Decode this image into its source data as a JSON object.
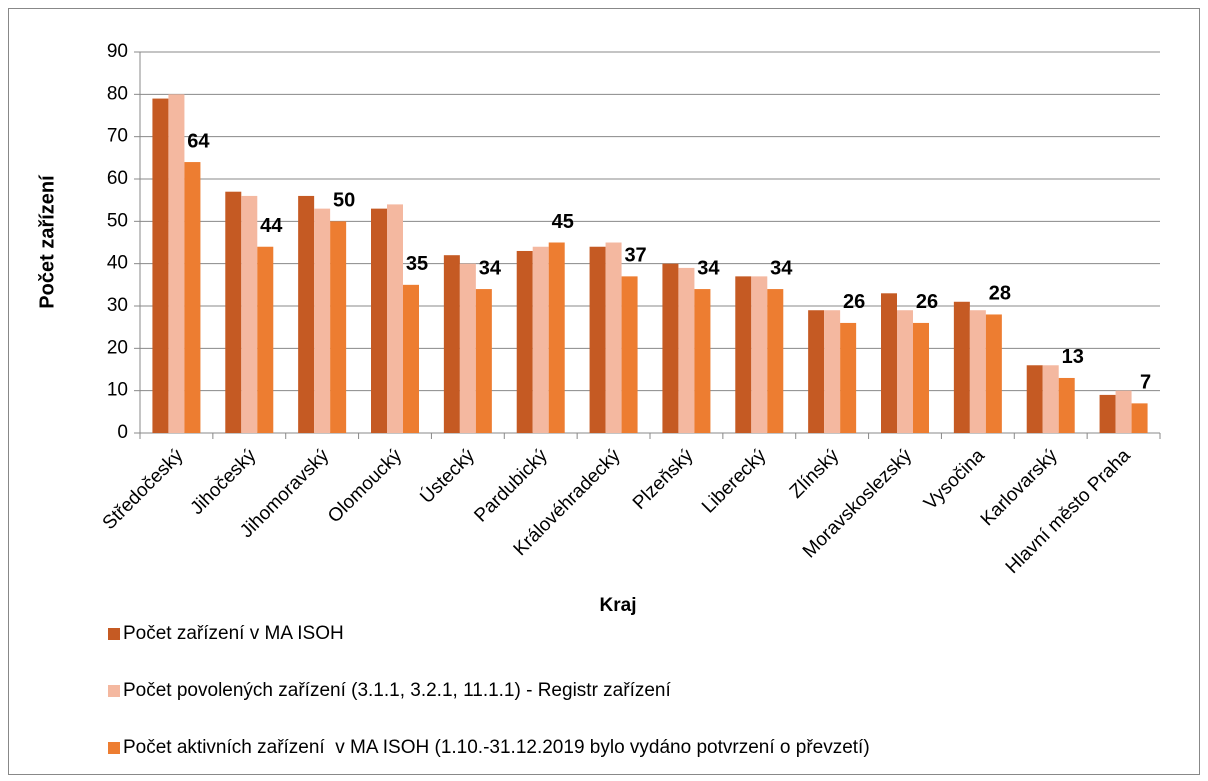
{
  "chart_data": {
    "type": "bar",
    "y_label": "Počet zařízení",
    "x_label": "Kraj",
    "categories": [
      "Středočeský",
      "Jihočeský",
      "Jihomoravský",
      "Olomoucký",
      "Ústecký",
      "Pardubický",
      "Královéhradecký",
      "Plzeňský",
      "Liberecký",
      "Zlínský",
      "Moravskoslezský",
      "Vysočina",
      "Karlovarský",
      "Hlavní město Praha"
    ],
    "series": [
      {
        "name": "Počet zařízení v MA ISOH",
        "color": "#c55a23",
        "values": [
          79,
          57,
          56,
          53,
          42,
          43,
          44,
          40,
          37,
          29,
          33,
          31,
          16,
          9
        ]
      },
      {
        "name": "Počet povolených zařízení (3.1.1, 3.2.1, 11.1.1) - Registr zařízení",
        "color": "#f4b8a0",
        "values": [
          80,
          56,
          53,
          54,
          40,
          44,
          45,
          39,
          37,
          29,
          29,
          29,
          16,
          10
        ]
      },
      {
        "name": "Počet aktivních zařízení  v MA ISOH (1.10.-31.12.2019 bylo vydáno potvrzení o převzetí)",
        "color": "#ed7d31",
        "values": [
          64,
          44,
          50,
          35,
          34,
          45,
          37,
          34,
          34,
          26,
          26,
          28,
          13,
          7
        ],
        "show_labels": true
      }
    ],
    "ylim": [
      0,
      90
    ],
    "yticks": [
      0,
      10,
      20,
      30,
      40,
      50,
      60,
      70,
      80,
      90
    ],
    "grid": true,
    "legend": "bottom"
  }
}
